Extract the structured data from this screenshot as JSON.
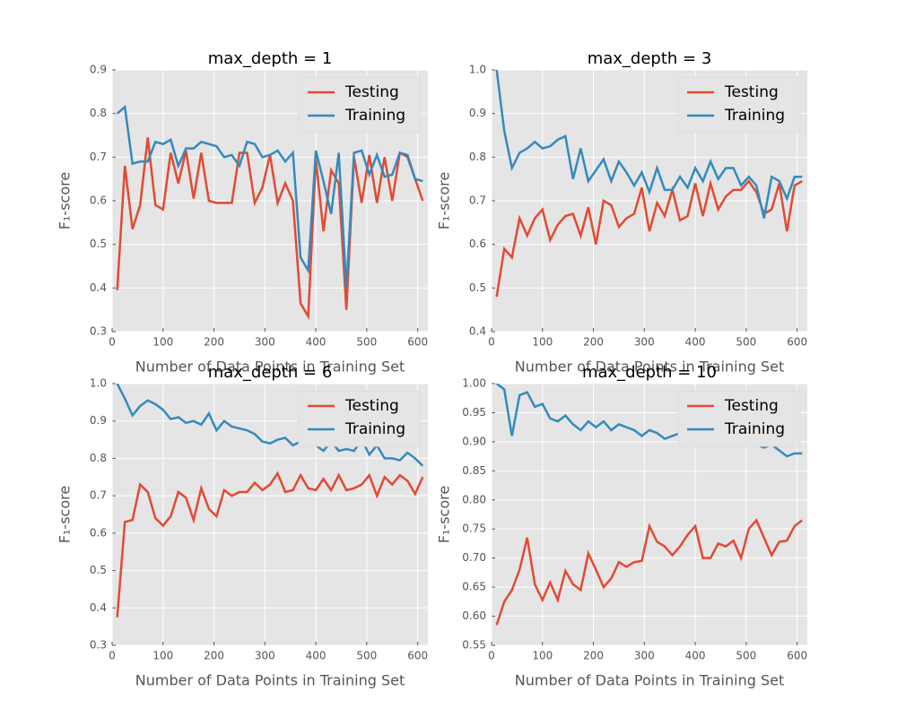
{
  "chart_data": [
    {
      "type": "line",
      "title": "max_depth = 1",
      "xlabel": "Number of Data Points in Training Set",
      "ylabel": "F₁-score",
      "x": [
        10,
        25,
        40,
        55,
        70,
        85,
        100,
        115,
        130,
        145,
        160,
        175,
        190,
        205,
        220,
        235,
        250,
        265,
        280,
        295,
        310,
        325,
        340,
        355,
        370,
        385,
        400,
        415,
        430,
        445,
        460,
        475,
        490,
        505,
        520,
        535,
        550,
        565,
        580,
        595,
        610
      ],
      "xlim": [
        0,
        620
      ],
      "xticks": [
        0,
        100,
        200,
        300,
        400,
        500,
        600
      ],
      "ylim": [
        0.3,
        0.9
      ],
      "yticks": [
        0.3,
        0.4,
        0.5,
        0.6,
        0.7,
        0.8,
        0.9
      ],
      "grid": true,
      "legend": "upper right",
      "series": [
        {
          "name": "Testing",
          "color": "#e24a33",
          "values": [
            0.395,
            0.68,
            0.535,
            0.59,
            0.745,
            0.59,
            0.58,
            0.71,
            0.64,
            0.715,
            0.605,
            0.71,
            0.6,
            0.595,
            0.595,
            0.595,
            0.71,
            0.71,
            0.595,
            0.63,
            0.705,
            0.595,
            0.64,
            0.6,
            0.365,
            0.335,
            0.695,
            0.53,
            0.67,
            0.64,
            0.35,
            0.7,
            0.595,
            0.705,
            0.595,
            0.7,
            0.6,
            0.71,
            0.7,
            0.65,
            0.6
          ]
        },
        {
          "name": "Training",
          "color": "#348abd",
          "values": [
            0.8,
            0.815,
            0.685,
            0.69,
            0.69,
            0.735,
            0.73,
            0.74,
            0.68,
            0.72,
            0.72,
            0.735,
            0.73,
            0.725,
            0.7,
            0.705,
            0.68,
            0.735,
            0.73,
            0.7,
            0.705,
            0.715,
            0.69,
            0.71,
            0.47,
            0.44,
            0.715,
            0.645,
            0.57,
            0.71,
            0.4,
            0.71,
            0.715,
            0.66,
            0.705,
            0.655,
            0.66,
            0.71,
            0.705,
            0.65,
            0.645
          ]
        }
      ]
    },
    {
      "type": "line",
      "title": "max_depth = 3",
      "xlabel": "Number of Data Points in Training Set",
      "ylabel": "F₁-score",
      "x": [
        10,
        25,
        40,
        55,
        70,
        85,
        100,
        115,
        130,
        145,
        160,
        175,
        190,
        205,
        220,
        235,
        250,
        265,
        280,
        295,
        310,
        325,
        340,
        355,
        370,
        385,
        400,
        415,
        430,
        445,
        460,
        475,
        490,
        505,
        520,
        535,
        550,
        565,
        580,
        595,
        610
      ],
      "xlim": [
        0,
        620
      ],
      "xticks": [
        0,
        100,
        200,
        300,
        400,
        500,
        600
      ],
      "ylim": [
        0.4,
        1.0
      ],
      "yticks": [
        0.4,
        0.5,
        0.6,
        0.7,
        0.8,
        0.9,
        {
          "value": 1,
          "label": "1.0"
        }
      ],
      "grid": true,
      "legend": "upper right",
      "series": [
        {
          "name": "Testing",
          "color": "#e24a33",
          "values": [
            0.48,
            0.59,
            0.57,
            0.66,
            0.62,
            0.66,
            0.68,
            0.61,
            0.645,
            0.665,
            0.67,
            0.62,
            0.685,
            0.6,
            0.7,
            0.69,
            0.64,
            0.66,
            0.67,
            0.73,
            0.63,
            0.695,
            0.665,
            0.725,
            0.655,
            0.665,
            0.74,
            0.665,
            0.74,
            0.68,
            0.71,
            0.725,
            0.725,
            0.745,
            0.72,
            0.67,
            0.68,
            0.74,
            0.63,
            0.735,
            0.745
          ]
        },
        {
          "name": "Training",
          "color": "#348abd",
          "values": [
            1.0,
            0.86,
            0.775,
            0.81,
            0.82,
            0.835,
            0.82,
            0.825,
            0.84,
            0.848,
            0.75,
            0.82,
            0.745,
            0.77,
            0.795,
            0.745,
            0.79,
            0.765,
            0.735,
            0.765,
            0.72,
            0.775,
            0.725,
            0.725,
            0.755,
            0.73,
            0.775,
            0.745,
            0.79,
            0.75,
            0.775,
            0.775,
            0.735,
            0.755,
            0.735,
            0.66,
            0.755,
            0.745,
            0.705,
            0.755,
            0.755
          ]
        }
      ]
    },
    {
      "type": "line",
      "title": "max_depth = 6",
      "xlabel": "Number of Data Points in Training Set",
      "ylabel": "F₁-score",
      "x": [
        10,
        25,
        40,
        55,
        70,
        85,
        100,
        115,
        130,
        145,
        160,
        175,
        190,
        205,
        220,
        235,
        250,
        265,
        280,
        295,
        310,
        325,
        340,
        355,
        370,
        385,
        400,
        415,
        430,
        445,
        460,
        475,
        490,
        505,
        520,
        535,
        550,
        565,
        580,
        595,
        610
      ],
      "xlim": [
        0,
        620
      ],
      "xticks": [
        0,
        100,
        200,
        300,
        400,
        500,
        600
      ],
      "ylim": [
        0.3,
        1.0
      ],
      "yticks": [
        0.3,
        0.4,
        0.5,
        0.6,
        0.7,
        0.8,
        0.9,
        {
          "value": 1,
          "label": "1.0"
        }
      ],
      "grid": true,
      "legend": "upper right",
      "series": [
        {
          "name": "Testing",
          "color": "#e24a33",
          "values": [
            0.375,
            0.63,
            0.635,
            0.73,
            0.71,
            0.64,
            0.62,
            0.645,
            0.71,
            0.695,
            0.635,
            0.72,
            0.665,
            0.645,
            0.715,
            0.7,
            0.71,
            0.71,
            0.735,
            0.715,
            0.73,
            0.76,
            0.71,
            0.715,
            0.755,
            0.72,
            0.715,
            0.745,
            0.715,
            0.755,
            0.715,
            0.72,
            0.73,
            0.755,
            0.7,
            0.75,
            0.73,
            0.755,
            0.74,
            0.705,
            0.75
          ]
        },
        {
          "name": "Training",
          "color": "#348abd",
          "values": [
            1.0,
            0.96,
            0.915,
            0.94,
            0.955,
            0.945,
            0.93,
            0.905,
            0.91,
            0.895,
            0.9,
            0.89,
            0.92,
            0.875,
            0.9,
            0.885,
            0.88,
            0.875,
            0.865,
            0.845,
            0.84,
            0.85,
            0.855,
            0.835,
            0.845,
            0.85,
            0.835,
            0.82,
            0.845,
            0.82,
            0.825,
            0.82,
            0.85,
            0.81,
            0.835,
            0.8,
            0.8,
            0.795,
            0.815,
            0.8,
            0.78
          ]
        }
      ]
    },
    {
      "type": "line",
      "title": "max_depth = 10",
      "xlabel": "Number of Data Points in Training Set",
      "ylabel": "F₁-score",
      "x": [
        10,
        25,
        40,
        55,
        70,
        85,
        100,
        115,
        130,
        145,
        160,
        175,
        190,
        205,
        220,
        235,
        250,
        265,
        280,
        295,
        310,
        325,
        340,
        355,
        370,
        385,
        400,
        415,
        430,
        445,
        460,
        475,
        490,
        505,
        520,
        535,
        550,
        565,
        580,
        595,
        610
      ],
      "xlim": [
        0,
        620
      ],
      "xticks": [
        0,
        100,
        200,
        300,
        400,
        500,
        600
      ],
      "ylim": [
        0.55,
        1.0
      ],
      "yticks": [
        0.55,
        {
          "value": 0.6,
          "label": "0.60"
        },
        0.65,
        {
          "value": 0.7,
          "label": "0.70"
        },
        0.75,
        {
          "value": 0.8,
          "label": "0.80"
        },
        0.85,
        {
          "value": 0.9,
          "label": "0.90"
        },
        0.95,
        {
          "value": 1,
          "label": "1.00"
        }
      ],
      "grid": true,
      "legend": "upper right",
      "series": [
        {
          "name": "Testing",
          "color": "#e24a33",
          "values": [
            0.585,
            0.625,
            0.645,
            0.68,
            0.735,
            0.655,
            0.628,
            0.658,
            0.628,
            0.678,
            0.655,
            0.645,
            0.708,
            0.68,
            0.65,
            0.665,
            0.693,
            0.685,
            0.693,
            0.695,
            0.755,
            0.728,
            0.72,
            0.705,
            0.72,
            0.74,
            0.755,
            0.7,
            0.7,
            0.725,
            0.72,
            0.73,
            0.7,
            0.75,
            0.765,
            0.735,
            0.705,
            0.728,
            0.73,
            0.755,
            0.765
          ]
        },
        {
          "name": "Training",
          "color": "#348abd",
          "values": [
            1.0,
            0.99,
            0.91,
            0.98,
            0.985,
            0.96,
            0.965,
            0.94,
            0.935,
            0.945,
            0.93,
            0.92,
            0.935,
            0.925,
            0.935,
            0.92,
            0.93,
            0.925,
            0.92,
            0.91,
            0.92,
            0.915,
            0.905,
            0.91,
            0.915,
            0.91,
            0.9,
            0.905,
            0.895,
            0.91,
            0.91,
            0.905,
            0.92,
            0.9,
            0.895,
            0.89,
            0.895,
            0.885,
            0.875,
            0.88,
            0.88
          ]
        }
      ]
    }
  ]
}
